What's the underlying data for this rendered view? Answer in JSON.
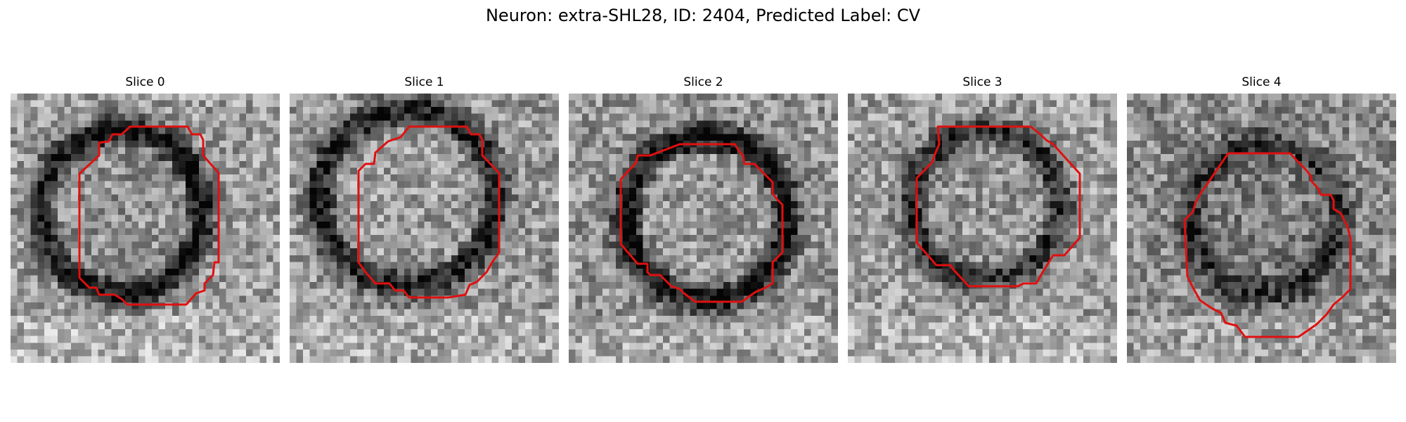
{
  "figure": {
    "title": "Neuron: extra-SHL28, ID: 2404, Predicted Label: CV"
  },
  "panels": [
    {
      "title": "Slice 0"
    },
    {
      "title": "Slice 1"
    },
    {
      "title": "Slice 2"
    },
    {
      "title": "Slice 3"
    },
    {
      "title": "Slice 4"
    }
  ],
  "colors": {
    "contour": "#e01010"
  }
}
